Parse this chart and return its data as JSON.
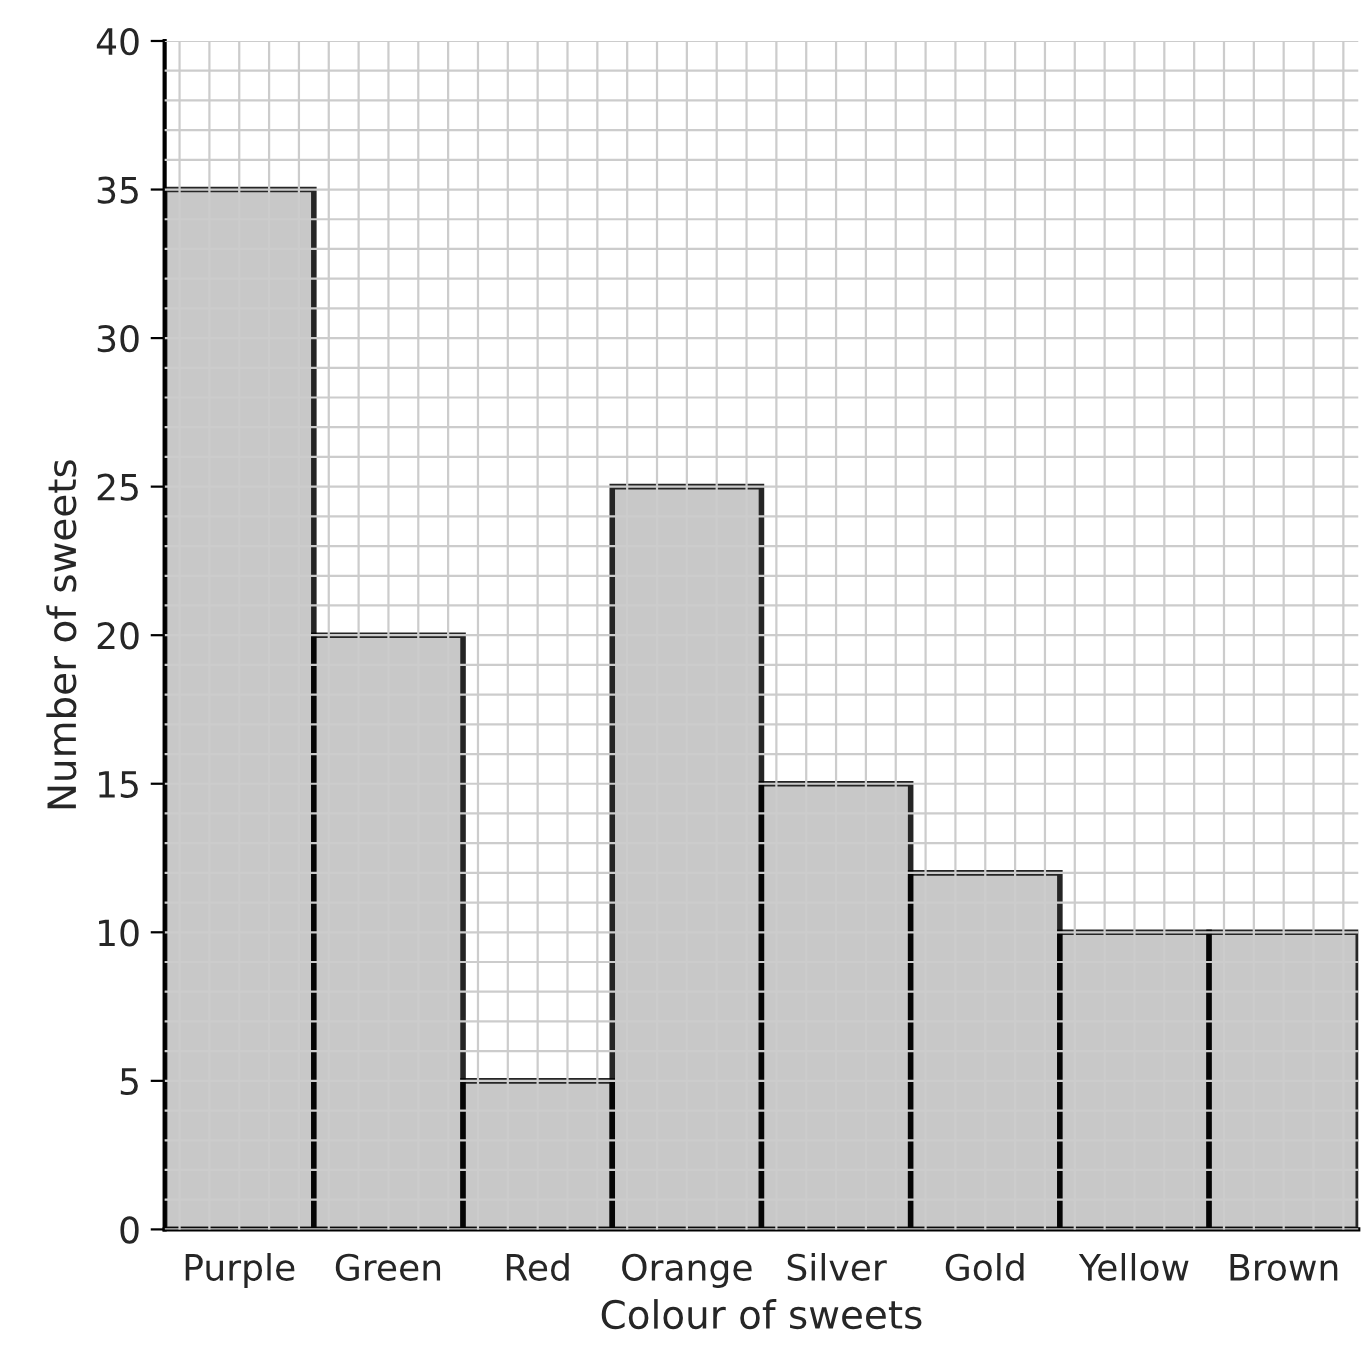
{
  "chart_data": {
    "type": "bar",
    "xlabel": "Colour of sweets",
    "ylabel": "Number of sweets",
    "categories": [
      "Purple",
      "Green",
      "Red",
      "Orange",
      "Silver",
      "Gold",
      "Yellow",
      "Brown"
    ],
    "values": [
      35,
      20,
      5,
      25,
      15,
      12,
      10,
      10
    ],
    "color": "#bfbfbf",
    "ylim": [
      0,
      40
    ],
    "yticks": [
      0,
      5,
      10,
      15,
      20,
      25,
      30,
      35,
      40
    ],
    "grid": true
  }
}
